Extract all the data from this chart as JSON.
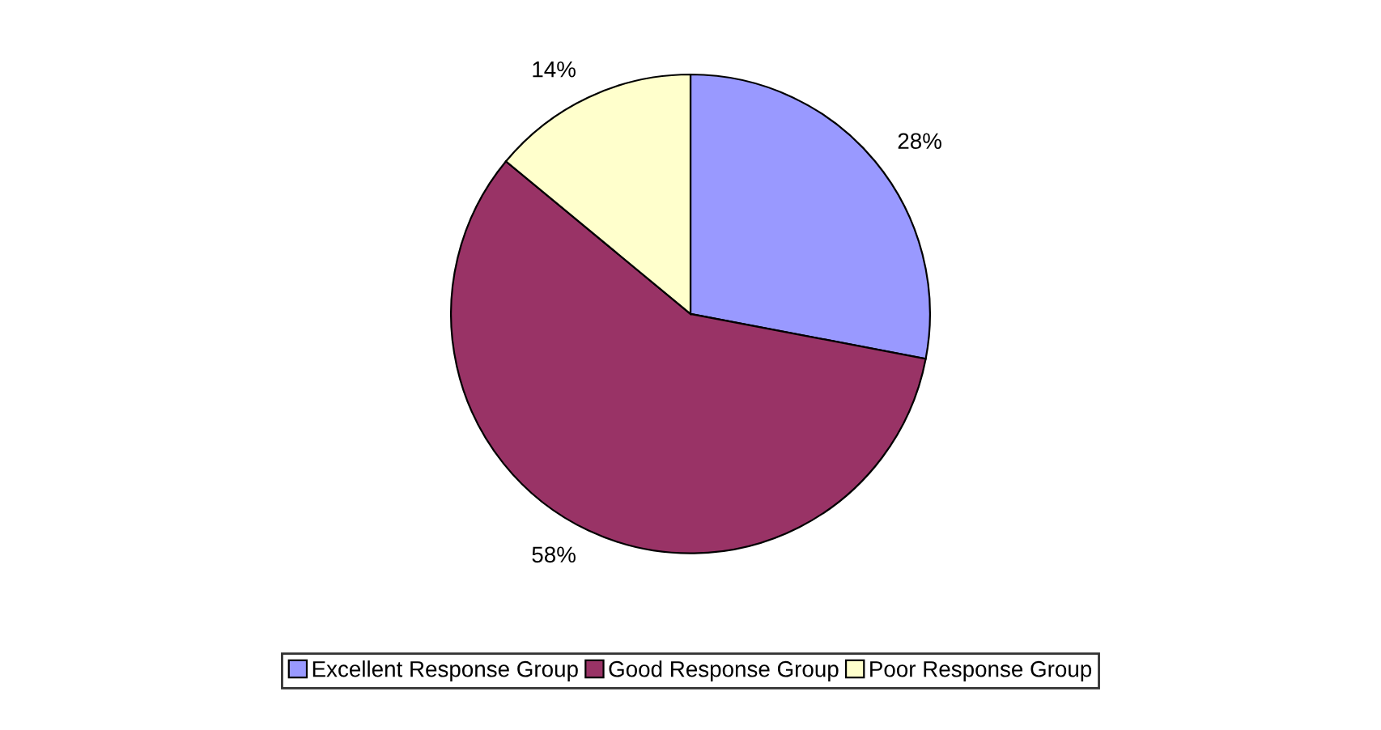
{
  "chart_data": {
    "type": "pie",
    "categories": [
      "Excellent Response Group",
      "Good Response Group",
      "Poor Response Group"
    ],
    "values": [
      28,
      58,
      14
    ],
    "colors": [
      "#9999ff",
      "#993366",
      "#ffffcc"
    ],
    "value_labels": [
      "28%",
      "58%",
      "14%"
    ],
    "legend": "bottom"
  }
}
